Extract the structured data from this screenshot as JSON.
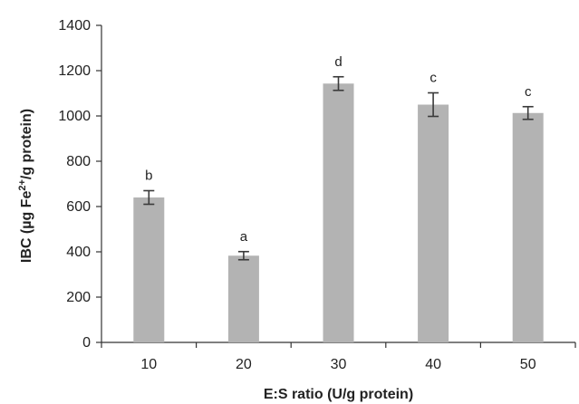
{
  "chart_data": {
    "type": "bar",
    "categories": [
      "10",
      "20",
      "30",
      "40",
      "50"
    ],
    "values": [
      640,
      383,
      1143,
      1050,
      1013
    ],
    "errors": [
      30,
      18,
      30,
      52,
      28
    ],
    "significance_labels": [
      "b",
      "a",
      "d",
      "c",
      "c"
    ],
    "title": "",
    "xlabel": "E:S ratio (U/g protein)",
    "ylabel": {
      "prefix": "IBC (µg Fe",
      "superscript": "2+",
      "suffix": "/g protein)"
    },
    "ylim": [
      0,
      1400
    ],
    "yticks": [
      0,
      200,
      400,
      600,
      800,
      1000,
      1200,
      1400
    ],
    "grid": false,
    "legend": "none",
    "bar_color": "#b3b3b3",
    "error_bar_color": "#3a3a3a",
    "axis_color": "#333333"
  }
}
